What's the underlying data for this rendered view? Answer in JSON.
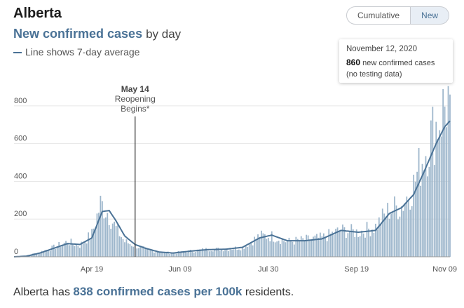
{
  "header": {
    "region": "Alberta",
    "subtitle_main": "New confirmed cases",
    "subtitle_suffix": "by day",
    "line_note": "Line shows 7-day average"
  },
  "toggle": {
    "cumulative_label": "Cumulative",
    "new_label": "New",
    "selected": "New"
  },
  "tooltip": {
    "date": "November 12, 2020",
    "value": "860",
    "value_suffix": "new confirmed cases",
    "note": "(no testing data)"
  },
  "annotation": {
    "date": "May 14",
    "line1": "Reopening",
    "line2": "Begins*"
  },
  "footer": {
    "prefix": "Alberta has",
    "highlight": "838 confirmed cases per 100k",
    "suffix": "residents."
  },
  "colors": {
    "bar": "#9eb7cc",
    "line": "#4a7296",
    "grid": "#e6e6e6",
    "annotation_line": "#333333"
  },
  "chart_data": {
    "type": "bar",
    "title": "New confirmed cases by day",
    "x_start": "2020-03-05",
    "x_end": "2020-11-12",
    "ylim": [
      0,
      900
    ],
    "yticks": [
      0,
      200,
      400,
      600,
      800
    ],
    "xtick_labels": [
      "Apr 19",
      "Jun 09",
      "Jul 30",
      "Sep 19",
      "Nov 09"
    ],
    "xtick_dates": [
      "2020-04-19",
      "2020-06-09",
      "2020-07-30",
      "2020-09-19",
      "2020-11-09"
    ],
    "grid": true,
    "series": [
      {
        "name": "New confirmed cases",
        "kind": "bar",
        "keypoints": [
          [
            "2020-03-05",
            0
          ],
          [
            "2020-03-12",
            5
          ],
          [
            "2020-03-20",
            25
          ],
          [
            "2020-03-28",
            50
          ],
          [
            "2020-04-05",
            80
          ],
          [
            "2020-04-12",
            60
          ],
          [
            "2020-04-19",
            120
          ],
          [
            "2020-04-24",
            280
          ],
          [
            "2020-04-28",
            240
          ],
          [
            "2020-05-03",
            150
          ],
          [
            "2020-05-08",
            80
          ],
          [
            "2020-05-14",
            60
          ],
          [
            "2020-05-20",
            40
          ],
          [
            "2020-05-28",
            25
          ],
          [
            "2020-06-05",
            20
          ],
          [
            "2020-06-15",
            30
          ],
          [
            "2020-06-25",
            40
          ],
          [
            "2020-07-05",
            40
          ],
          [
            "2020-07-15",
            50
          ],
          [
            "2020-07-25",
            110
          ],
          [
            "2020-08-01",
            110
          ],
          [
            "2020-08-10",
            80
          ],
          [
            "2020-08-20",
            90
          ],
          [
            "2020-08-30",
            100
          ],
          [
            "2020-09-10",
            140
          ],
          [
            "2020-09-20",
            130
          ],
          [
            "2020-09-30",
            160
          ],
          [
            "2020-10-08",
            250
          ],
          [
            "2020-10-15",
            270
          ],
          [
            "2020-10-22",
            380
          ],
          [
            "2020-10-28",
            550
          ],
          [
            "2020-11-04",
            700
          ],
          [
            "2020-11-09",
            800
          ],
          [
            "2020-11-12",
            860
          ]
        ]
      },
      {
        "name": "7-day average",
        "kind": "line",
        "keypoints": [
          [
            "2020-03-05",
            0
          ],
          [
            "2020-03-12",
            3
          ],
          [
            "2020-03-20",
            20
          ],
          [
            "2020-03-28",
            45
          ],
          [
            "2020-04-05",
            70
          ],
          [
            "2020-04-12",
            65
          ],
          [
            "2020-04-19",
            100
          ],
          [
            "2020-04-25",
            240
          ],
          [
            "2020-04-29",
            245
          ],
          [
            "2020-05-03",
            190
          ],
          [
            "2020-05-08",
            110
          ],
          [
            "2020-05-14",
            65
          ],
          [
            "2020-05-20",
            45
          ],
          [
            "2020-05-28",
            25
          ],
          [
            "2020-06-05",
            20
          ],
          [
            "2020-06-15",
            30
          ],
          [
            "2020-06-25",
            38
          ],
          [
            "2020-07-05",
            40
          ],
          [
            "2020-07-15",
            50
          ],
          [
            "2020-07-25",
            100
          ],
          [
            "2020-08-01",
            115
          ],
          [
            "2020-08-10",
            85
          ],
          [
            "2020-08-20",
            85
          ],
          [
            "2020-08-30",
            95
          ],
          [
            "2020-09-10",
            140
          ],
          [
            "2020-09-20",
            130
          ],
          [
            "2020-09-30",
            140
          ],
          [
            "2020-10-08",
            230
          ],
          [
            "2020-10-15",
            260
          ],
          [
            "2020-10-22",
            330
          ],
          [
            "2020-10-28",
            450
          ],
          [
            "2020-11-04",
            600
          ],
          [
            "2020-11-09",
            690
          ],
          [
            "2020-11-12",
            720
          ]
        ]
      }
    ]
  }
}
